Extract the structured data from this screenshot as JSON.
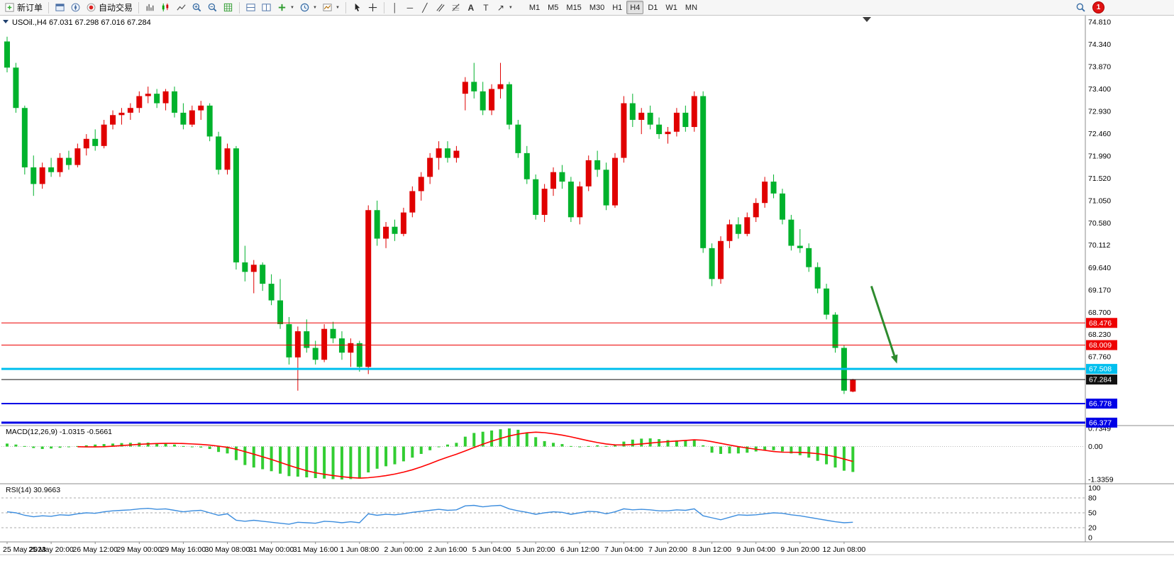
{
  "toolbar": {
    "new_order_label": "新订单",
    "autotrading_label": "自动交易",
    "timeframes": [
      "M1",
      "M5",
      "M15",
      "M30",
      "H1",
      "H4",
      "D1",
      "W1",
      "MN"
    ],
    "active_timeframe": "H4",
    "notification_count": "1"
  },
  "chart": {
    "title": "USOil.,H4",
    "ohlc": "67.031 67.298 67.016 67.284",
    "price_scale_labels": [
      "74.810",
      "74.340",
      "73.870",
      "73.400",
      "72.930",
      "72.460",
      "71.990",
      "71.520",
      "71.050",
      "70.580",
      "70.112",
      "69.640",
      "69.170",
      "68.700",
      "68.230",
      "67.760"
    ],
    "price_tags": [
      {
        "label": "68.476",
        "price": 68.476,
        "color": "#ee0000",
        "line_width": 1
      },
      {
        "label": "68.009",
        "price": 68.009,
        "color": "#ee0000",
        "line_width": 1
      },
      {
        "label": "67.508",
        "price": 67.508,
        "color": "#00bfee",
        "line_width": 3
      },
      {
        "label": "67.284",
        "price": 67.284,
        "color": "#111111",
        "line_width": 1
      },
      {
        "label": "66.778",
        "price": 66.778,
        "color": "#0000e6",
        "line_width": 2
      },
      {
        "label": "66.377",
        "price": 66.377,
        "color": "#0000e6",
        "line_width": 3
      }
    ]
  },
  "chart_data": {
    "type": "candlestick",
    "symbol": "USOil",
    "timeframe": "H4",
    "ylim": [
      66.345,
      74.825
    ],
    "x_label_every": 5,
    "x_labels": [
      "25 May 2023",
      "25 May 20:00",
      "26 May 12:00",
      "29 May 00:00",
      "29 May 16:00",
      "30 May 08:00",
      "31 May 00:00",
      "31 May 16:00",
      "1 Jun 08:00",
      "2 Jun 00:00",
      "2 Jun 16:00",
      "5 Jun 04:00",
      "5 Jun 20:00",
      "6 Jun 12:00",
      "7 Jun 04:00",
      "7 Jun 20:00",
      "8 Jun 12:00",
      "9 Jun 04:00",
      "9 Jun 20:00",
      "12 Jun 08:00"
    ],
    "bull_color": "#e00000",
    "bear_color": "#00b22c",
    "candles": [
      [
        74.4,
        74.5,
        73.75,
        73.85
      ],
      [
        73.85,
        73.95,
        72.9,
        73.0
      ],
      [
        73.0,
        73.05,
        71.6,
        71.75
      ],
      [
        71.75,
        72.0,
        71.15,
        71.4
      ],
      [
        71.4,
        71.85,
        71.3,
        71.75
      ],
      [
        71.75,
        71.95,
        71.55,
        71.65
      ],
      [
        71.65,
        72.05,
        71.55,
        71.95
      ],
      [
        71.95,
        72.1,
        71.7,
        71.8
      ],
      [
        71.8,
        72.25,
        71.75,
        72.15
      ],
      [
        72.15,
        72.45,
        72.0,
        72.35
      ],
      [
        72.35,
        72.55,
        72.1,
        72.2
      ],
      [
        72.2,
        72.75,
        72.15,
        72.65
      ],
      [
        72.65,
        72.95,
        72.55,
        72.85
      ],
      [
        72.85,
        73.0,
        72.65,
        72.9
      ],
      [
        72.9,
        73.1,
        72.75,
        73.0
      ],
      [
        73.0,
        73.35,
        72.9,
        73.25
      ],
      [
        73.25,
        73.45,
        73.1,
        73.3
      ],
      [
        73.3,
        73.4,
        73.0,
        73.1
      ],
      [
        73.1,
        73.4,
        72.95,
        73.35
      ],
      [
        73.35,
        73.45,
        72.8,
        72.9
      ],
      [
        72.9,
        73.1,
        72.55,
        72.65
      ],
      [
        72.65,
        73.05,
        72.6,
        72.95
      ],
      [
        72.95,
        73.15,
        72.75,
        73.05
      ],
      [
        73.05,
        73.1,
        72.3,
        72.4
      ],
      [
        72.4,
        72.5,
        71.6,
        71.7
      ],
      [
        71.7,
        72.25,
        71.6,
        72.15
      ],
      [
        72.15,
        72.2,
        69.6,
        69.75
      ],
      [
        69.75,
        70.1,
        69.35,
        69.55
      ],
      [
        69.55,
        69.8,
        69.1,
        69.7
      ],
      [
        69.7,
        69.75,
        69.15,
        69.3
      ],
      [
        69.3,
        69.5,
        68.85,
        68.95
      ],
      [
        68.95,
        69.4,
        68.35,
        68.45
      ],
      [
        68.45,
        68.6,
        67.6,
        67.75
      ],
      [
        67.75,
        68.4,
        67.05,
        68.3
      ],
      [
        68.3,
        68.55,
        67.85,
        67.95
      ],
      [
        67.95,
        68.1,
        67.6,
        67.7
      ],
      [
        67.7,
        68.45,
        67.65,
        68.35
      ],
      [
        68.35,
        68.5,
        68.05,
        68.15
      ],
      [
        68.15,
        68.3,
        67.7,
        67.85
      ],
      [
        67.85,
        68.15,
        67.55,
        68.05
      ],
      [
        68.05,
        68.1,
        67.45,
        67.55
      ],
      [
        67.55,
        70.95,
        67.4,
        70.85
      ],
      [
        70.85,
        71.05,
        70.1,
        70.25
      ],
      [
        70.25,
        70.6,
        70.05,
        70.5
      ],
      [
        70.5,
        70.65,
        70.2,
        70.35
      ],
      [
        70.35,
        70.9,
        70.3,
        70.8
      ],
      [
        70.8,
        71.35,
        70.7,
        71.25
      ],
      [
        71.25,
        71.65,
        71.05,
        71.55
      ],
      [
        71.55,
        72.05,
        71.4,
        71.95
      ],
      [
        71.95,
        72.3,
        71.7,
        72.15
      ],
      [
        72.15,
        72.3,
        71.85,
        71.95
      ],
      [
        71.95,
        72.2,
        71.85,
        72.1
      ],
      [
        73.3,
        73.65,
        72.95,
        73.55
      ],
      [
        73.55,
        73.95,
        73.2,
        73.35
      ],
      [
        73.35,
        73.55,
        72.85,
        72.95
      ],
      [
        72.95,
        73.5,
        72.85,
        73.4
      ],
      [
        73.4,
        73.95,
        73.2,
        73.5
      ],
      [
        73.5,
        73.55,
        72.55,
        72.65
      ],
      [
        72.65,
        72.75,
        71.95,
        72.05
      ],
      [
        72.05,
        72.2,
        71.4,
        71.5
      ],
      [
        71.5,
        71.6,
        70.65,
        70.75
      ],
      [
        70.75,
        71.4,
        70.6,
        71.3
      ],
      [
        71.3,
        71.75,
        71.15,
        71.65
      ],
      [
        71.65,
        71.8,
        71.3,
        71.45
      ],
      [
        71.45,
        71.55,
        70.6,
        70.7
      ],
      [
        70.7,
        71.45,
        70.55,
        71.35
      ],
      [
        71.35,
        72.0,
        71.25,
        71.9
      ],
      [
        71.9,
        72.1,
        71.55,
        71.7
      ],
      [
        71.7,
        71.85,
        70.85,
        70.95
      ],
      [
        70.95,
        72.05,
        70.9,
        71.95
      ],
      [
        71.95,
        73.25,
        71.85,
        73.1
      ],
      [
        73.1,
        73.3,
        72.6,
        72.75
      ],
      [
        72.75,
        73.0,
        72.45,
        72.9
      ],
      [
        72.9,
        73.05,
        72.55,
        72.65
      ],
      [
        72.65,
        72.8,
        72.35,
        72.45
      ],
      [
        72.45,
        72.6,
        72.25,
        72.5
      ],
      [
        72.5,
        73.0,
        72.4,
        72.9
      ],
      [
        72.9,
        73.05,
        72.5,
        72.6
      ],
      [
        72.6,
        73.35,
        72.5,
        73.25
      ],
      [
        73.25,
        73.35,
        69.95,
        70.05
      ],
      [
        70.05,
        70.15,
        69.25,
        69.4
      ],
      [
        69.4,
        70.3,
        69.3,
        70.2
      ],
      [
        70.2,
        70.65,
        70.05,
        70.55
      ],
      [
        70.55,
        70.7,
        70.25,
        70.35
      ],
      [
        70.35,
        70.8,
        70.3,
        70.7
      ],
      [
        70.7,
        71.1,
        70.6,
        71.0
      ],
      [
        71.0,
        71.55,
        70.9,
        71.45
      ],
      [
        71.45,
        71.6,
        71.1,
        71.2
      ],
      [
        71.2,
        71.3,
        70.55,
        70.65
      ],
      [
        70.65,
        70.75,
        70.0,
        70.1
      ],
      [
        70.1,
        70.45,
        69.95,
        70.05
      ],
      [
        70.05,
        70.15,
        69.55,
        69.65
      ],
      [
        69.65,
        69.75,
        69.1,
        69.2
      ],
      [
        69.2,
        69.3,
        68.55,
        68.65
      ],
      [
        68.65,
        68.7,
        67.85,
        67.95
      ],
      [
        67.95,
        68.0,
        66.98,
        67.05
      ],
      [
        67.031,
        67.298,
        67.016,
        67.284
      ]
    ],
    "annotations": [
      {
        "type": "arrow",
        "from": {
          "bar": 98.1,
          "price": 69.25
        },
        "to": {
          "bar": 101.0,
          "price": 67.62
        },
        "color": "#2e8b2e"
      }
    ],
    "indicators": {
      "macd": {
        "label": "MACD(12,26,9)",
        "values_label": "-1.0315 -0.5661",
        "scale_labels": [
          "0.7349",
          "0.00",
          "-1.3359"
        ],
        "ylim": [
          -1.3359,
          0.7349
        ],
        "signal_period": 9,
        "histogram_color": "#32cd32",
        "signal_color": "#ff0000",
        "histogram": [
          0.12,
          0.08,
          0.02,
          -0.06,
          -0.1,
          -0.08,
          -0.05,
          -0.02,
          0.02,
          0.05,
          0.08,
          0.1,
          0.12,
          0.14,
          0.15,
          0.16,
          0.16,
          0.14,
          0.12,
          0.08,
          0.02,
          -0.02,
          -0.04,
          -0.1,
          -0.22,
          -0.28,
          -0.55,
          -0.75,
          -0.85,
          -0.92,
          -1.0,
          -1.1,
          -1.2,
          -1.22,
          -1.25,
          -1.28,
          -1.3,
          -1.32,
          -1.3359,
          -1.32,
          -1.3,
          -1.05,
          -0.9,
          -0.8,
          -0.72,
          -0.6,
          -0.45,
          -0.3,
          -0.15,
          -0.02,
          0.08,
          0.15,
          0.4,
          0.55,
          0.6,
          0.65,
          0.7,
          0.7349,
          0.68,
          0.55,
          0.38,
          0.22,
          0.15,
          0.1,
          0.02,
          -0.02,
          0.02,
          0.05,
          0.02,
          0.05,
          0.2,
          0.28,
          0.32,
          0.33,
          0.3,
          0.26,
          0.25,
          0.24,
          0.28,
          0.05,
          -0.25,
          -0.3,
          -0.28,
          -0.28,
          -0.25,
          -0.2,
          -0.15,
          -0.15,
          -0.2,
          -0.28,
          -0.35,
          -0.45,
          -0.58,
          -0.72,
          -0.85,
          -0.98,
          -1.0315
        ]
      },
      "rsi": {
        "label": "RSI(14)",
        "value_label": "30.9663",
        "scale_labels": [
          "100",
          "80",
          "50",
          "20",
          "0"
        ],
        "levels": [
          80,
          50,
          20
        ],
        "line_color": "#3c8dde",
        "values": [
          52,
          50,
          45,
          42,
          44,
          43,
          46,
          45,
          48,
          50,
          49,
          52,
          54,
          55,
          56,
          58,
          59,
          57,
          58,
          55,
          52,
          54,
          55,
          50,
          45,
          48,
          35,
          33,
          35,
          33,
          31,
          29,
          27,
          31,
          30,
          29,
          33,
          32,
          30,
          32,
          30,
          48,
          45,
          47,
          46,
          48,
          51,
          53,
          55,
          57,
          55,
          56,
          64,
          65,
          62,
          64,
          65,
          58,
          54,
          51,
          47,
          50,
          52,
          51,
          47,
          50,
          53,
          52,
          48,
          52,
          58,
          56,
          57,
          56,
          54,
          54,
          56,
          55,
          58,
          44,
          40,
          36,
          41,
          46,
          45,
          46,
          48,
          50,
          49,
          46,
          44,
          41,
          38,
          35,
          32,
          30,
          30.97
        ]
      }
    }
  }
}
